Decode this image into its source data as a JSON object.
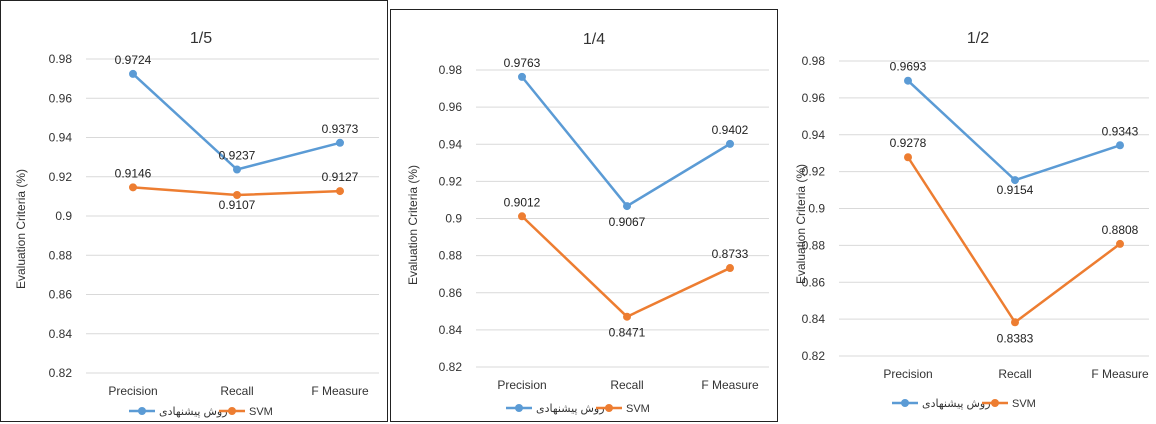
{
  "colors": {
    "series1": "#5b9bd5",
    "series2": "#ed7d31",
    "grid": "#d9d9d9"
  },
  "chart_data": [
    {
      "type": "line",
      "title": "1/5",
      "ylabel": "Evaluation Criteria (%)",
      "categories": [
        "Precision",
        "Recall",
        "F Measure"
      ],
      "ylim": [
        0.82,
        0.98
      ],
      "yticks": [
        "0.98",
        "0.96",
        "0.94",
        "0.92",
        "0.9",
        "0.88",
        "0.86",
        "0.84",
        "0.82"
      ],
      "grid": true,
      "legend": "bottom",
      "series": [
        {
          "name": "روش پیشنهادی",
          "values": [
            0.9724,
            0.9237,
            0.9373
          ],
          "labels": [
            "0.9724",
            "0.9237",
            "0.9373"
          ]
        },
        {
          "name": "SVM",
          "values": [
            0.9146,
            0.9107,
            0.9127
          ],
          "labels": [
            "0.9146",
            "0.9107",
            "0.9127"
          ]
        }
      ]
    },
    {
      "type": "line",
      "title": "1/4",
      "ylabel": "Evaluation Criteria (%)",
      "categories": [
        "Precision",
        "Recall",
        "F Measure"
      ],
      "ylim": [
        0.82,
        0.98
      ],
      "yticks": [
        "0.98",
        "0.96",
        "0.94",
        "0.92",
        "0.9",
        "0.88",
        "0.86",
        "0.84",
        "0.82"
      ],
      "grid": true,
      "legend": "bottom",
      "series": [
        {
          "name": "روش پیشنهادی",
          "values": [
            0.9763,
            0.9067,
            0.9402
          ],
          "labels": [
            "0.9763",
            "0.9067",
            "0.9402"
          ]
        },
        {
          "name": "SVM",
          "values": [
            0.9012,
            0.8471,
            0.8733
          ],
          "labels": [
            "0.9012",
            "0.8471",
            "0.8733"
          ]
        }
      ]
    },
    {
      "type": "line",
      "title": "1/2",
      "ylabel": "Evaluation Criteria (%)",
      "categories": [
        "Precision",
        "Recall",
        "F Measure"
      ],
      "ylim": [
        0.82,
        0.98
      ],
      "yticks": [
        "0.98",
        "0.96",
        "0.94",
        "0.92",
        "0.9",
        "0.88",
        "0.86",
        "0.84",
        "0.82"
      ],
      "grid": true,
      "legend": "bottom",
      "series": [
        {
          "name": "روش پیشنهادی",
          "values": [
            0.9693,
            0.9154,
            0.9343
          ],
          "labels": [
            "0.9693",
            "0.9154",
            "0.9343"
          ]
        },
        {
          "name": "SVM",
          "values": [
            0.9278,
            0.8383,
            0.8808
          ],
          "labels": [
            "0.9278",
            "0.8383",
            "0.8808"
          ]
        }
      ]
    }
  ]
}
